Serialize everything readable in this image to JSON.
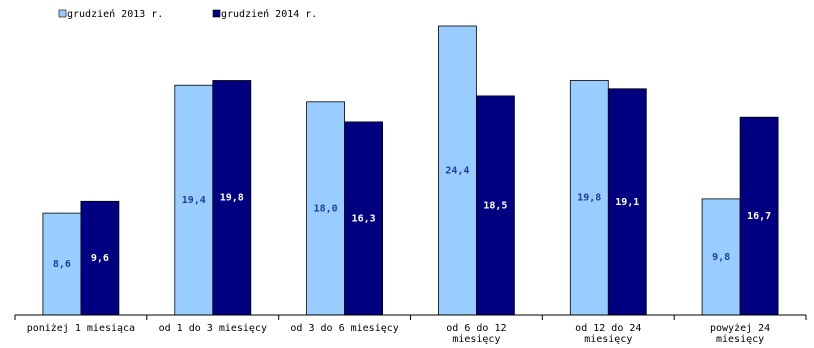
{
  "chart_data": {
    "type": "bar",
    "categories": [
      [
        "poniżej 1 miesiąca"
      ],
      [
        "od 1 do 3 miesięcy"
      ],
      [
        "od 3 do 6 miesięcy"
      ],
      [
        "od 6 do 12",
        "miesięcy"
      ],
      [
        "od 12 do 24",
        "miesięcy"
      ],
      [
        "powyżej 24",
        "miesięcy"
      ]
    ],
    "series": [
      {
        "name": "grudzień 2013 r.",
        "values": [
          8.6,
          19.4,
          18.0,
          24.4,
          19.8,
          9.8
        ],
        "labels": [
          "8,6",
          "19,4",
          "18,0",
          "24,4",
          "19,8",
          "9,8"
        ],
        "color": "#99ccff",
        "label_color": "#1f3f9f"
      },
      {
        "name": "grudzień 2014 r.",
        "values": [
          9.6,
          19.8,
          16.3,
          18.5,
          19.1,
          16.7
        ],
        "labels": [
          "9,6",
          "19,8",
          "16,3",
          "18,5",
          "19,1",
          "16,7"
        ],
        "color": "#000080",
        "label_color": "#ffffff"
      }
    ],
    "ylim": [
      0,
      24.4
    ],
    "grid": false,
    "legend": "top-left"
  }
}
